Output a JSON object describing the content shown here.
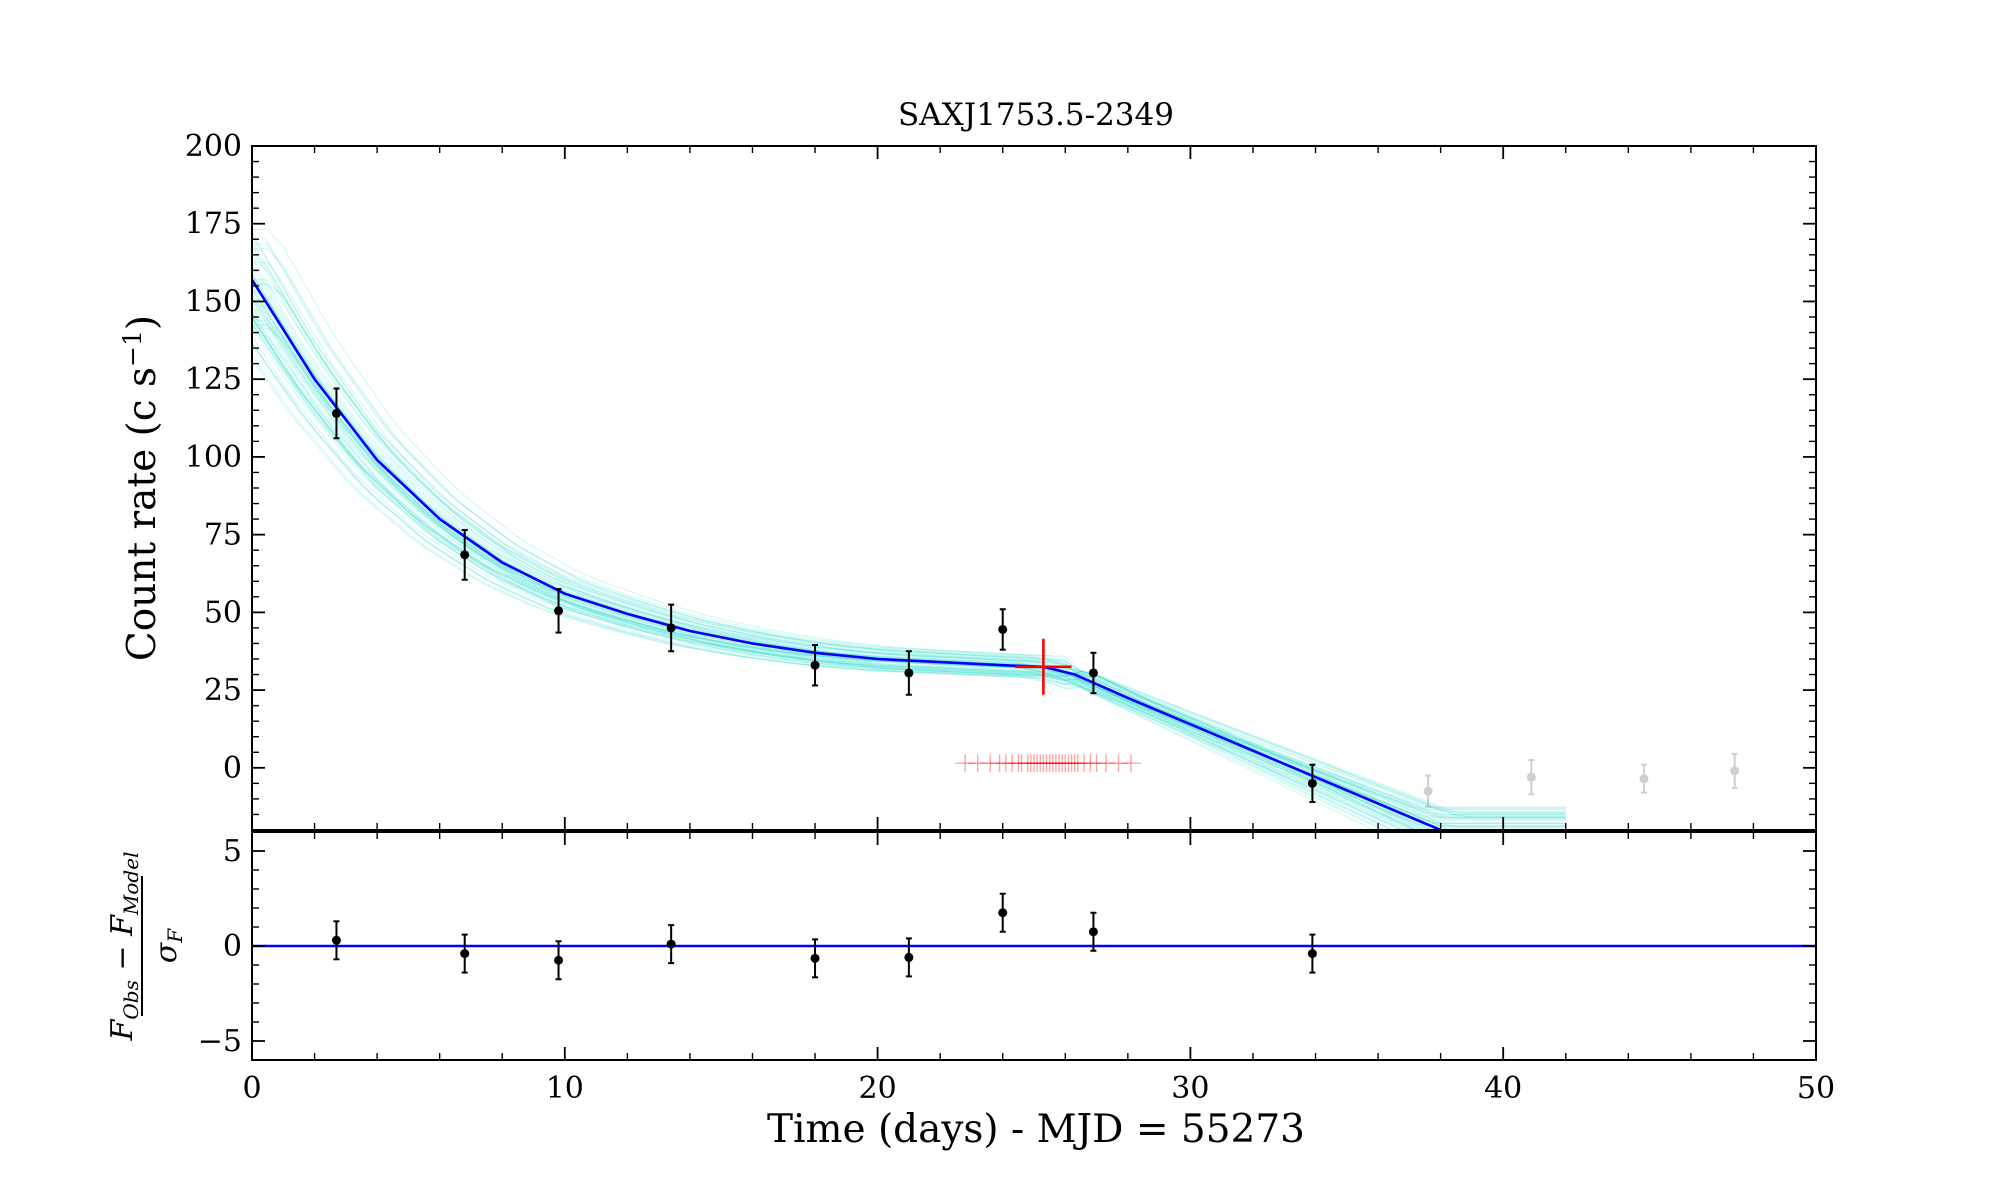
{
  "chart_data": {
    "type": "scatter",
    "title": "SAXJ1753.5-2349",
    "xlabel": "Time (days) - MJD = 55273",
    "xlim": [
      0,
      50
    ],
    "xticks": [
      0,
      10,
      20,
      30,
      40,
      50
    ],
    "panels": [
      {
        "name": "main",
        "ylabel": "Count rate (c s",
        "ylabel_sup": "−1",
        "ylabel_end": ")",
        "ylim": [
          -20,
          200
        ],
        "yticks": [
          0,
          25,
          50,
          75,
          100,
          125,
          150,
          175,
          200
        ],
        "points": [
          {
            "x": 2.7,
            "y": 114,
            "err": 8
          },
          {
            "x": 6.8,
            "y": 68.5,
            "err": 8
          },
          {
            "x": 9.8,
            "y": 50.5,
            "err": 7
          },
          {
            "x": 13.4,
            "y": 45,
            "err": 7.5
          },
          {
            "x": 18.0,
            "y": 33,
            "err": 6.5
          },
          {
            "x": 21.0,
            "y": 30.5,
            "err": 7
          },
          {
            "x": 24.0,
            "y": 44.5,
            "err": 6.5
          },
          {
            "x": 26.9,
            "y": 30.5,
            "err": 6.5
          },
          {
            "x": 33.9,
            "y": -5,
            "err": 6
          }
        ],
        "excluded_points": [
          {
            "x": 37.6,
            "y": -7.5,
            "err": 5
          },
          {
            "x": 40.9,
            "y": -3,
            "err": 5.5
          },
          {
            "x": 44.5,
            "y": -3.5,
            "err": 4.5
          },
          {
            "x": 47.4,
            "y": -1,
            "err": 5.5
          }
        ],
        "model_line": {
          "color": "#0000ff",
          "x": [
            0,
            2,
            4,
            6,
            8,
            10,
            12,
            14,
            16,
            18,
            20,
            22,
            24,
            25.3,
            26.3,
            28,
            30,
            32,
            34,
            36,
            38
          ],
          "y": [
            157,
            125,
            99,
            80,
            66,
            56,
            49.5,
            44,
            40,
            37,
            35,
            34,
            33,
            32.5,
            30,
            22.5,
            14,
            5.5,
            -3,
            -11.5,
            -20
          ]
        },
        "samples_color": "#40e0d0",
        "break_point": {
          "x": 25.3,
          "y": 32.5,
          "xerr": 0.9,
          "yerr": 9,
          "color": "#ff0000"
        },
        "break_samples_y": 1.5,
        "break_samples_x": [
          22.8,
          23.2,
          23.6,
          23.9,
          24.1,
          24.3,
          24.5,
          24.6,
          24.8,
          24.9,
          25.0,
          25.1,
          25.2,
          25.3,
          25.4,
          25.5,
          25.6,
          25.7,
          25.8,
          25.9,
          26.0,
          26.1,
          26.2,
          26.3,
          26.4,
          26.6,
          26.8,
          27.0,
          27.3,
          27.7,
          28.1
        ]
      },
      {
        "name": "residuals",
        "ylabel": "(F_Obs − F_Model) / σ_F",
        "ylim": [
          -6,
          6
        ],
        "yticks": [
          -5,
          0,
          5
        ],
        "points": [
          {
            "x": 2.7,
            "y": 0.3,
            "err": 1
          },
          {
            "x": 6.8,
            "y": -0.4,
            "err": 1
          },
          {
            "x": 9.8,
            "y": -0.75,
            "err": 1
          },
          {
            "x": 13.4,
            "y": 0.1,
            "err": 1
          },
          {
            "x": 18.0,
            "y": -0.65,
            "err": 1
          },
          {
            "x": 21.0,
            "y": -0.6,
            "err": 1
          },
          {
            "x": 24.0,
            "y": 1.75,
            "err": 1
          },
          {
            "x": 26.9,
            "y": 0.75,
            "err": 1
          },
          {
            "x": 33.9,
            "y": -0.4,
            "err": 1
          }
        ],
        "zero_line_color": "#0000ff"
      }
    ]
  }
}
